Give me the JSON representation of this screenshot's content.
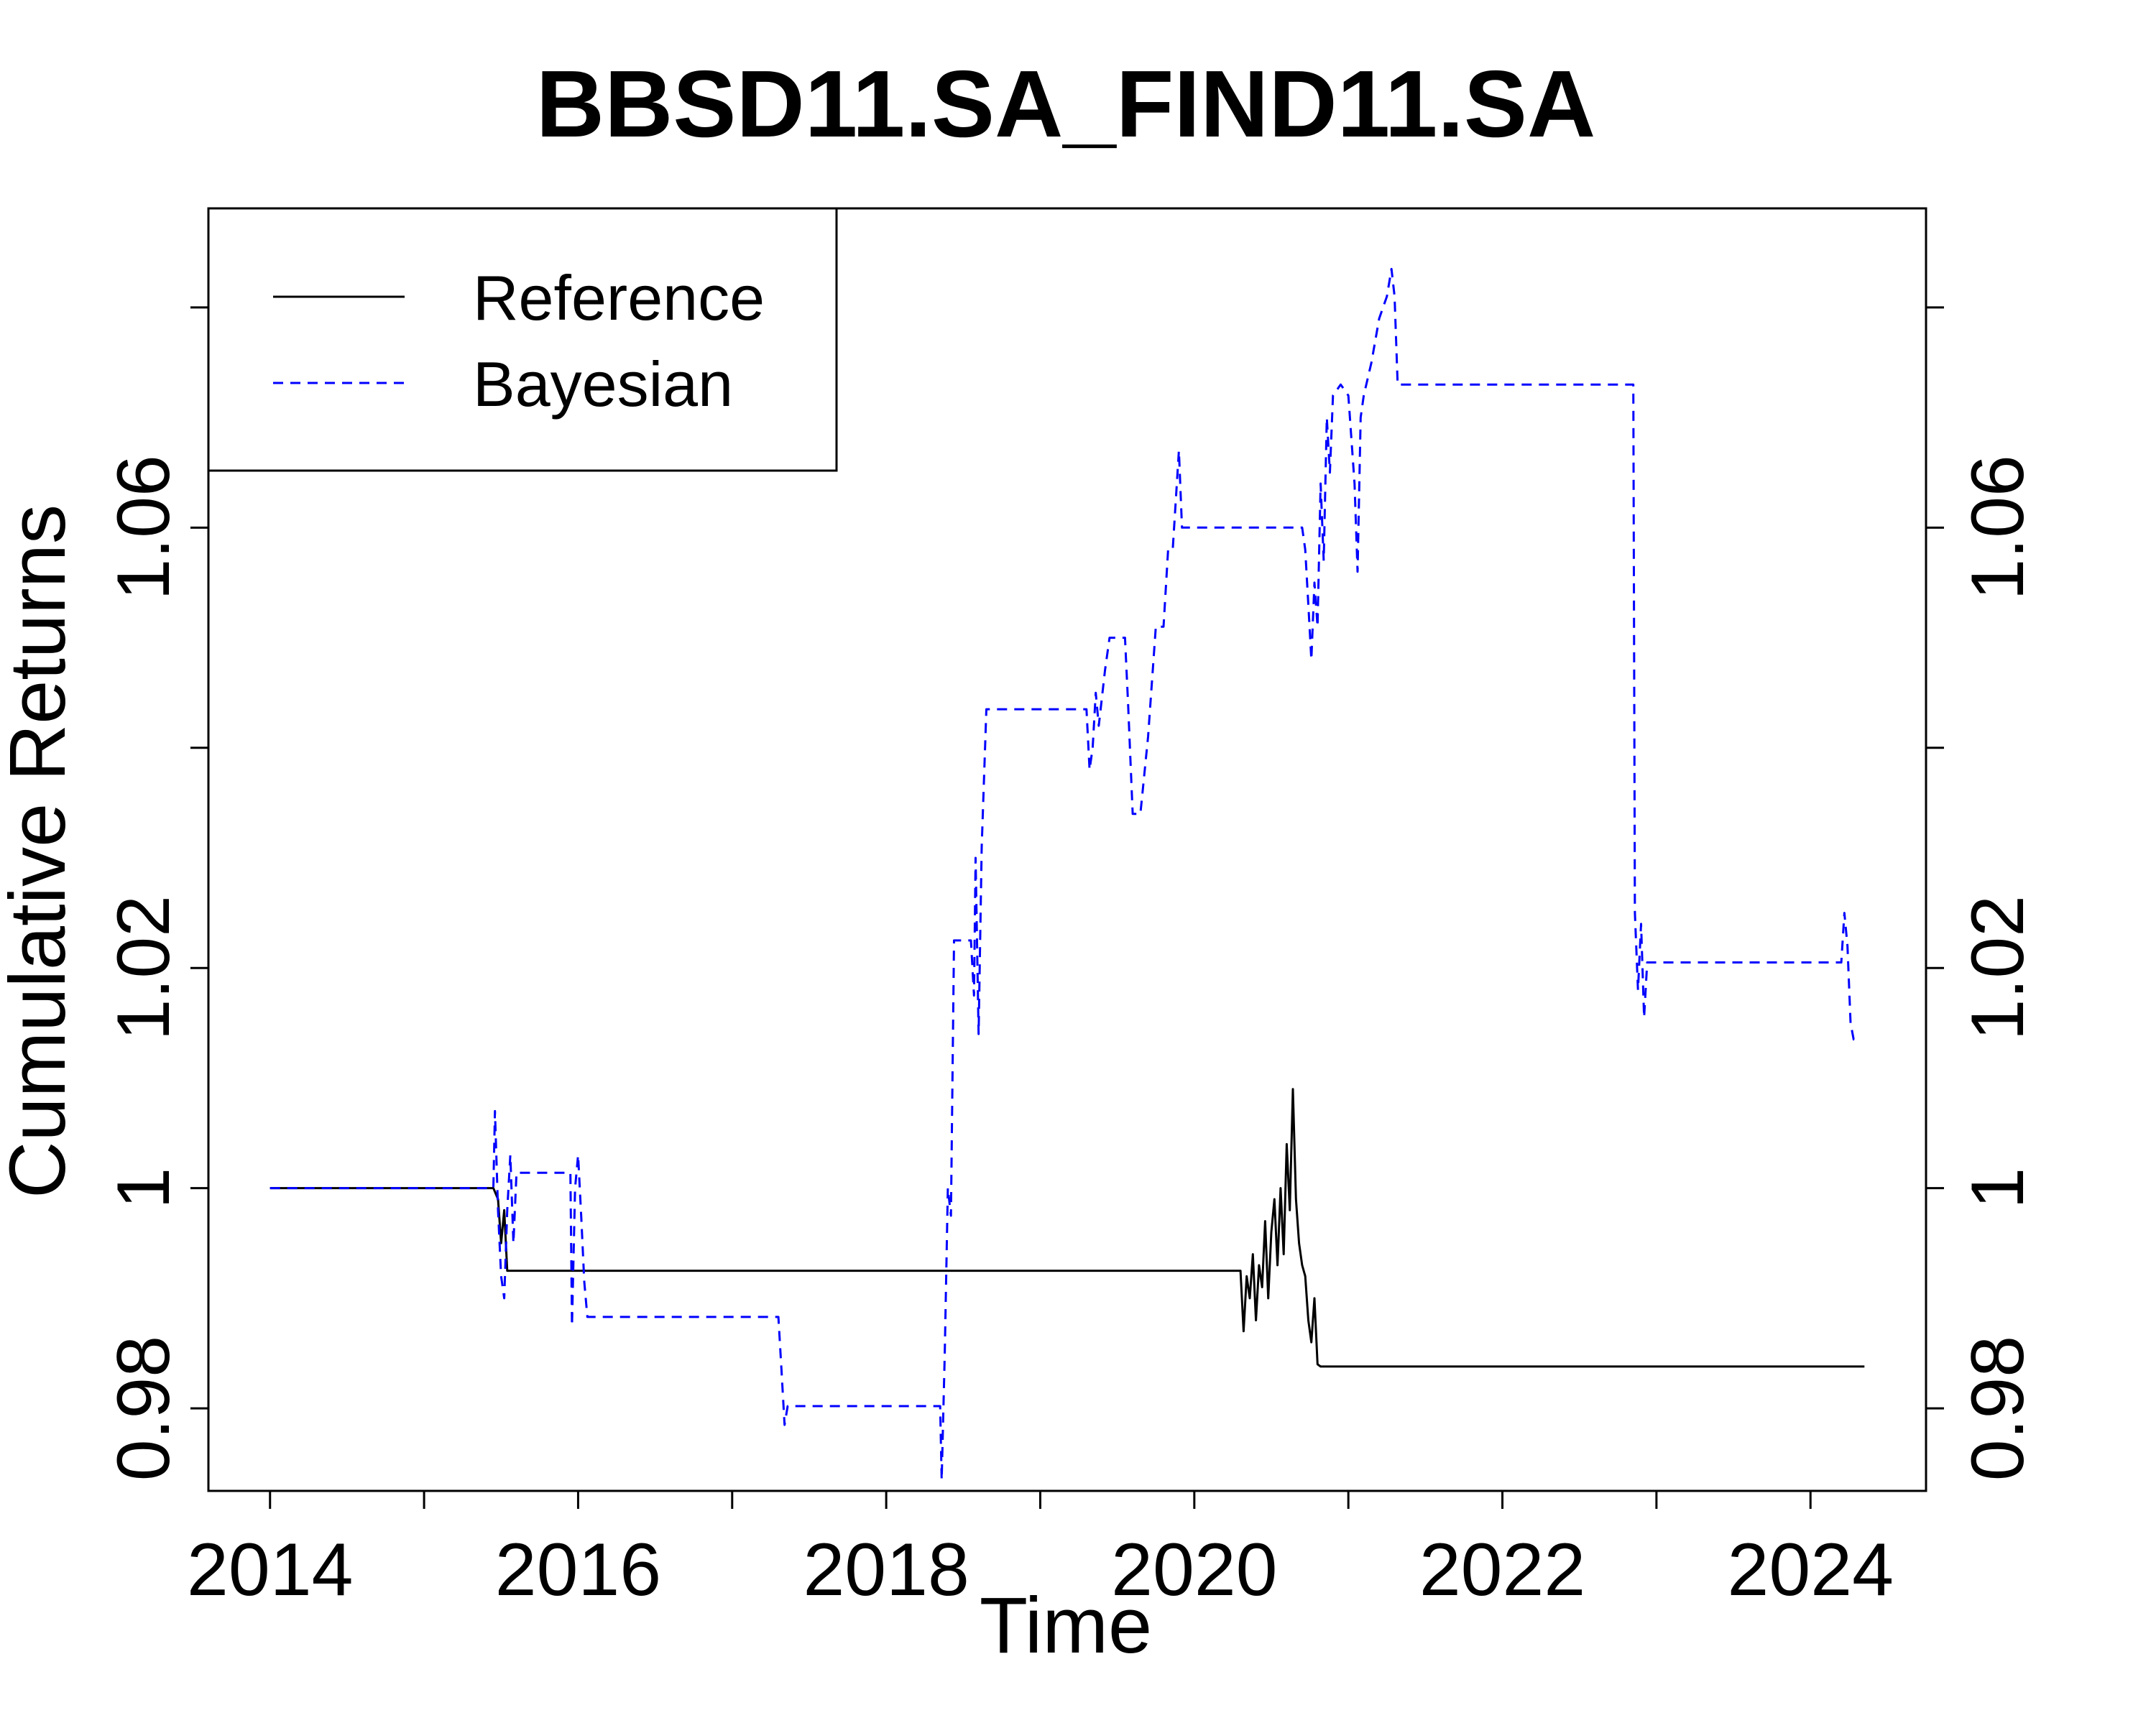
{
  "colors": {
    "reference": "#000000",
    "bayesian": "#0000ff",
    "background": "#ffffff"
  },
  "chart_data": {
    "type": "line",
    "title": "BBSD11.SA_FIND11.SA",
    "xlabel": "Time",
    "ylabel": "Cumulative Returns",
    "xlim": [
      2013.6,
      2024.75
    ],
    "ylim": [
      0.9725,
      1.089
    ],
    "x_ticks": [
      2014,
      2015,
      2016,
      2017,
      2018,
      2019,
      2020,
      2021,
      2022,
      2023,
      2024
    ],
    "x_tick_labels": [
      "2014",
      "",
      "2016",
      "",
      "2018",
      "",
      "2020",
      "",
      "2022",
      "",
      "2024"
    ],
    "y_ticks": [
      0.98,
      1.0,
      1.02,
      1.04,
      1.06,
      1.08
    ],
    "y_tick_labels": [
      "0.98",
      "1",
      "1.02",
      "",
      "1.06",
      ""
    ],
    "grid": false,
    "legend_position": "top-left",
    "series": [
      {
        "name": "Reference",
        "style": "solid",
        "points": [
          [
            2014.0,
            1.0
          ],
          [
            2015.45,
            1.0
          ],
          [
            2015.48,
            0.999
          ],
          [
            2015.5,
            0.995
          ],
          [
            2015.52,
            0.998
          ],
          [
            2015.54,
            0.9925
          ],
          [
            2015.57,
            0.9925
          ],
          [
            2020.3,
            0.9925
          ],
          [
            2020.32,
            0.987
          ],
          [
            2020.34,
            0.992
          ],
          [
            2020.36,
            0.99
          ],
          [
            2020.38,
            0.994
          ],
          [
            2020.4,
            0.988
          ],
          [
            2020.42,
            0.993
          ],
          [
            2020.44,
            0.991
          ],
          [
            2020.46,
            0.997
          ],
          [
            2020.48,
            0.99
          ],
          [
            2020.5,
            0.996
          ],
          [
            2020.52,
            0.999
          ],
          [
            2020.54,
            0.993
          ],
          [
            2020.56,
            1.0
          ],
          [
            2020.58,
            0.994
          ],
          [
            2020.6,
            1.004
          ],
          [
            2020.62,
            0.998
          ],
          [
            2020.64,
            1.009
          ],
          [
            2020.66,
            0.999
          ],
          [
            2020.68,
            0.995
          ],
          [
            2020.7,
            0.993
          ],
          [
            2020.72,
            0.992
          ],
          [
            2020.74,
            0.988
          ],
          [
            2020.76,
            0.986
          ],
          [
            2020.78,
            0.99
          ],
          [
            2020.8,
            0.984
          ],
          [
            2020.82,
            0.9838
          ],
          [
            2024.35,
            0.9838
          ]
        ]
      },
      {
        "name": "Bayesian",
        "style": "dashed",
        "points": [
          [
            2014.0,
            1.0
          ],
          [
            2015.45,
            1.0
          ],
          [
            2015.46,
            1.007
          ],
          [
            2015.48,
            0.998
          ],
          [
            2015.5,
            0.992
          ],
          [
            2015.52,
            0.99
          ],
          [
            2015.54,
            0.998
          ],
          [
            2015.56,
            1.003
          ],
          [
            2015.58,
            0.995
          ],
          [
            2015.6,
            1.0014
          ],
          [
            2015.95,
            1.0014
          ],
          [
            2015.96,
            0.9875
          ],
          [
            2015.98,
            1.0
          ],
          [
            2016.0,
            1.003
          ],
          [
            2016.02,
            0.9975
          ],
          [
            2016.04,
            0.9915
          ],
          [
            2016.06,
            0.9883
          ],
          [
            2017.3,
            0.9883
          ],
          [
            2017.32,
            0.9835
          ],
          [
            2017.34,
            0.9785
          ],
          [
            2017.36,
            0.9802
          ],
          [
            2018.35,
            0.9802
          ],
          [
            2018.36,
            0.9735
          ],
          [
            2018.38,
            0.985
          ],
          [
            2018.4,
            1.0
          ],
          [
            2018.42,
            0.9975
          ],
          [
            2018.44,
            1.0225
          ],
          [
            2018.55,
            1.0225
          ],
          [
            2018.57,
            1.0175
          ],
          [
            2018.58,
            1.03
          ],
          [
            2018.6,
            1.014
          ],
          [
            2018.62,
            1.031
          ],
          [
            2018.65,
            1.0435
          ],
          [
            2019.3,
            1.0435
          ],
          [
            2019.32,
            1.038
          ],
          [
            2019.34,
            1.04
          ],
          [
            2019.36,
            1.045
          ],
          [
            2019.38,
            1.042
          ],
          [
            2019.42,
            1.047
          ],
          [
            2019.45,
            1.05
          ],
          [
            2019.55,
            1.05
          ],
          [
            2019.57,
            1.044
          ],
          [
            2019.6,
            1.034
          ],
          [
            2019.65,
            1.034
          ],
          [
            2019.7,
            1.041
          ],
          [
            2019.75,
            1.051
          ],
          [
            2019.8,
            1.051
          ],
          [
            2019.83,
            1.058
          ],
          [
            2019.86,
            1.058
          ],
          [
            2019.9,
            1.067
          ],
          [
            2019.92,
            1.06
          ],
          [
            2020.7,
            1.06
          ],
          [
            2020.72,
            1.058
          ],
          [
            2020.74,
            1.053
          ],
          [
            2020.76,
            1.048
          ],
          [
            2020.78,
            1.055
          ],
          [
            2020.8,
            1.051
          ],
          [
            2020.82,
            1.064
          ],
          [
            2020.84,
            1.057
          ],
          [
            2020.86,
            1.07
          ],
          [
            2020.88,
            1.065
          ],
          [
            2020.9,
            1.072
          ],
          [
            2020.95,
            1.073
          ],
          [
            2021.0,
            1.072
          ],
          [
            2021.04,
            1.064
          ],
          [
            2021.06,
            1.056
          ],
          [
            2021.08,
            1.07
          ],
          [
            2021.1,
            1.072
          ],
          [
            2021.15,
            1.075
          ],
          [
            2021.2,
            1.079
          ],
          [
            2021.25,
            1.081
          ],
          [
            2021.28,
            1.0835
          ],
          [
            2021.3,
            1.081
          ],
          [
            2021.32,
            1.073
          ],
          [
            2022.85,
            1.073
          ],
          [
            2022.86,
            1.025
          ],
          [
            2022.88,
            1.018
          ],
          [
            2022.9,
            1.024
          ],
          [
            2022.92,
            1.0155
          ],
          [
            2022.94,
            1.0205
          ],
          [
            2024.2,
            1.0205
          ],
          [
            2024.22,
            1.025
          ],
          [
            2024.24,
            1.022
          ],
          [
            2024.26,
            1.015
          ],
          [
            2024.28,
            1.0135
          ],
          [
            2024.3,
            1.0135
          ]
        ]
      }
    ]
  }
}
